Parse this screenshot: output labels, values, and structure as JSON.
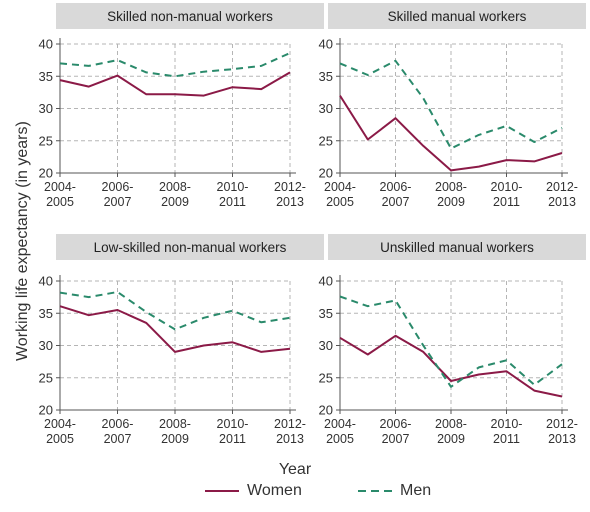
{
  "colors": {
    "women": "#8b1a47",
    "men": "#2a8a6b",
    "grid": "#b5b5b5",
    "panel_header": "#d9d9d9"
  },
  "chart_data": {
    "type": "line",
    "ylabel": "Working life expectancy (in years)",
    "xlabel": "Year",
    "legend": {
      "placement": "bottom",
      "entries": [
        "Women",
        "Men"
      ]
    },
    "x_ticks": [
      {
        "line1": "2004-",
        "line2": "2005"
      },
      {
        "line1": "2006-",
        "line2": "2007"
      },
      {
        "line1": "2008-",
        "line2": "2009"
      },
      {
        "line1": "2010-",
        "line2": "2011"
      },
      {
        "line1": "2012-",
        "line2": "2013"
      }
    ],
    "x": [
      2004,
      2005,
      2006,
      2007,
      2008,
      2009,
      2010,
      2011,
      2012
    ],
    "grid": true,
    "panels": [
      {
        "title": "Skilled non-manual workers",
        "yticks": [
          20,
          25,
          30,
          35,
          40
        ],
        "ylim": [
          20,
          40
        ],
        "series": [
          {
            "name": "Women",
            "values": [
              34.4,
              33.4,
              35.1,
              32.2,
              32.2,
              32.0,
              33.3,
              33.0,
              35.6
            ]
          },
          {
            "name": "Men",
            "values": [
              37.0,
              36.6,
              37.5,
              35.6,
              35.0,
              35.7,
              36.1,
              36.6,
              38.6
            ]
          }
        ]
      },
      {
        "title": "Skilled manual workers",
        "yticks": [
          20,
          25,
          30,
          35,
          40
        ],
        "ylim": [
          20,
          40
        ],
        "series": [
          {
            "name": "Women",
            "values": [
              32.0,
              25.2,
              28.5,
              24.2,
              20.4,
              21.0,
              22.0,
              21.8,
              23.1
            ]
          },
          {
            "name": "Men",
            "values": [
              37.0,
              35.2,
              37.4,
              31.6,
              23.8,
              25.9,
              27.3,
              24.8,
              27.0
            ]
          }
        ]
      },
      {
        "title": "Low-skilled non-manual workers",
        "yticks": [
          20,
          25,
          30,
          35,
          40
        ],
        "ylim": [
          20,
          40
        ],
        "series": [
          {
            "name": "Women",
            "values": [
              36.1,
              34.7,
              35.5,
              33.5,
              29.0,
              30.0,
              30.5,
              29.0,
              29.5
            ]
          },
          {
            "name": "Men",
            "values": [
              38.2,
              37.5,
              38.3,
              35.2,
              32.5,
              34.3,
              35.4,
              33.6,
              34.3
            ]
          }
        ]
      },
      {
        "title": "Unskilled manual workers",
        "yticks": [
          20,
          25,
          30,
          35,
          40
        ],
        "ylim": [
          20,
          40
        ],
        "series": [
          {
            "name": "Women",
            "values": [
              31.2,
              28.6,
              31.5,
              29.0,
              24.5,
              25.5,
              26.0,
              23.0,
              22.1
            ]
          },
          {
            "name": "Men",
            "values": [
              37.6,
              36.1,
              37.0,
              30.0,
              23.6,
              26.6,
              27.7,
              23.9,
              27.1
            ]
          }
        ]
      }
    ]
  }
}
